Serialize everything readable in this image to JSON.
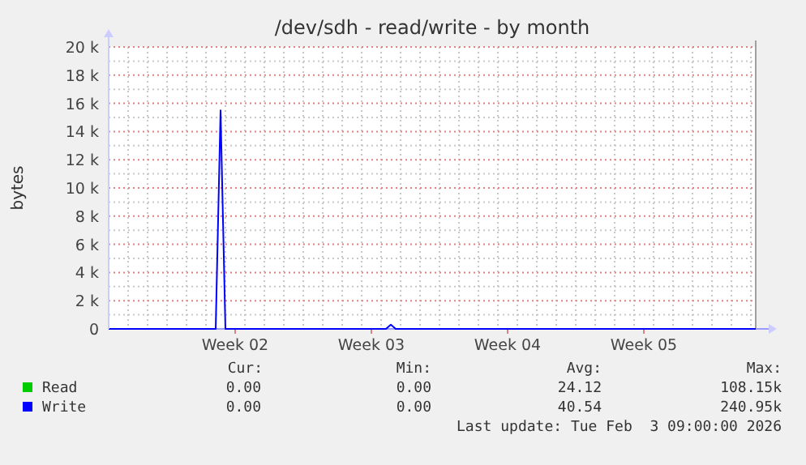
{
  "chart_data": {
    "type": "line",
    "title": "/dev/sdh - read/write - by month",
    "ylabel": "bytes",
    "categories": [
      null,
      null,
      null,
      null,
      null,
      null,
      null,
      null,
      null,
      null,
      null,
      null,
      null,
      null,
      null,
      null,
      null,
      null,
      null,
      null,
      null,
      null,
      null,
      null,
      null,
      null,
      "Week 02",
      null,
      null,
      null,
      null,
      null,
      null,
      null,
      null,
      null,
      null,
      null,
      null,
      null,
      null,
      null,
      null,
      null,
      null,
      null,
      null,
      null,
      null,
      null,
      null,
      null,
      null,
      null,
      "Week 03",
      null,
      null,
      null,
      null,
      null,
      null,
      null,
      null,
      null,
      null,
      null,
      null,
      null,
      null,
      null,
      null,
      null,
      null,
      null,
      null,
      null,
      null,
      null,
      null,
      null,
      null,
      null,
      "Week 04",
      null,
      null,
      null,
      null,
      null,
      null,
      null,
      null,
      null,
      null,
      null,
      null,
      null,
      null,
      null,
      null,
      null,
      null,
      null,
      null,
      null,
      null,
      null,
      null,
      null,
      null,
      null,
      "Week 05",
      null,
      null,
      null,
      null,
      null,
      null,
      null,
      null,
      null,
      null,
      null,
      null,
      null,
      null,
      null,
      null,
      null,
      null,
      null,
      null,
      null,
      null,
      null
    ],
    "ylim": [
      0,
      20000
    ],
    "yticks": [
      {
        "value": 0,
        "label": "0"
      },
      {
        "value": 2000,
        "label": "2 k"
      },
      {
        "value": 4000,
        "label": "4 k"
      },
      {
        "value": 6000,
        "label": "6 k"
      },
      {
        "value": 8000,
        "label": "8 k"
      },
      {
        "value": 10000,
        "label": "10 k"
      },
      {
        "value": 12000,
        "label": "12 k"
      },
      {
        "value": 14000,
        "label": "14 k"
      },
      {
        "value": 16000,
        "label": "16 k"
      },
      {
        "value": 18000,
        "label": "18 k"
      },
      {
        "value": 20000,
        "label": "20 k"
      }
    ],
    "grid": true,
    "legend": "bottom left",
    "marker": "none",
    "line_style": "solid",
    "series": [
      {
        "name": "Read",
        "color": "#00cc00",
        "values": [
          null,
          null,
          null,
          null,
          null,
          null,
          null,
          null,
          null,
          null,
          null,
          null,
          null,
          null,
          null,
          null,
          null,
          null,
          null,
          null,
          null,
          null,
          null,
          null,
          null,
          null,
          null,
          null,
          null,
          null,
          null,
          null,
          null,
          null,
          null,
          null,
          null,
          null,
          null,
          null,
          null,
          null,
          null,
          null,
          null,
          null,
          null,
          null,
          null,
          null,
          null,
          null,
          null,
          null,
          null,
          null,
          null,
          null,
          null,
          null,
          null,
          null,
          null,
          null,
          null,
          null,
          null,
          null,
          null,
          null,
          null,
          null,
          null,
          null,
          null,
          null,
          null,
          null,
          null,
          null,
          null,
          null,
          null,
          null,
          null,
          null,
          null,
          null,
          null,
          null,
          null,
          null,
          null,
          null,
          null,
          null,
          null,
          null,
          null,
          null,
          null,
          null,
          null,
          null,
          null,
          null,
          null,
          null,
          null,
          null,
          null,
          null,
          null,
          null,
          null,
          null,
          null,
          null,
          null,
          null,
          null,
          null,
          null,
          null,
          null,
          null,
          null,
          null,
          null,
          null,
          null,
          null,
          null,
          null
        ]
      },
      {
        "name": "Write",
        "color": "#0000ff",
        "values": [
          0,
          0,
          0,
          0,
          0,
          0,
          0,
          0,
          0,
          0,
          0,
          0,
          0,
          0,
          0,
          0,
          0,
          0,
          0,
          0,
          0,
          0,
          0,
          15500,
          0,
          0,
          0,
          0,
          0,
          0,
          0,
          0,
          0,
          0,
          0,
          0,
          0,
          0,
          0,
          0,
          0,
          0,
          0,
          0,
          0,
          0,
          0,
          0,
          0,
          0,
          0,
          0,
          0,
          0,
          0,
          0,
          0,
          0,
          300,
          0,
          0,
          0,
          0,
          0,
          0,
          0,
          0,
          0,
          0,
          0,
          0,
          0,
          0,
          0,
          0,
          0,
          0,
          0,
          0,
          0,
          0,
          0,
          0,
          0,
          0,
          0,
          0,
          0,
          0,
          0,
          0,
          0,
          0,
          0,
          0,
          0,
          0,
          0,
          0,
          0,
          0,
          0,
          0,
          0,
          0,
          0,
          0,
          0,
          0,
          0,
          0,
          0,
          0,
          0,
          0,
          0,
          0,
          0,
          0,
          0,
          0,
          0,
          0,
          0,
          0,
          0,
          0,
          0,
          0,
          0,
          0,
          0,
          0,
          0
        ]
      }
    ],
    "annotations": [
      "Cur:",
      "Min:",
      "Avg:",
      "Max:",
      "0.00",
      "0.00",
      "24.12",
      "108.15k",
      "0.00",
      "0.00",
      "40.54",
      "240.95k",
      "Last update: Tue Feb  3 09:00:00 2026"
    ]
  }
}
